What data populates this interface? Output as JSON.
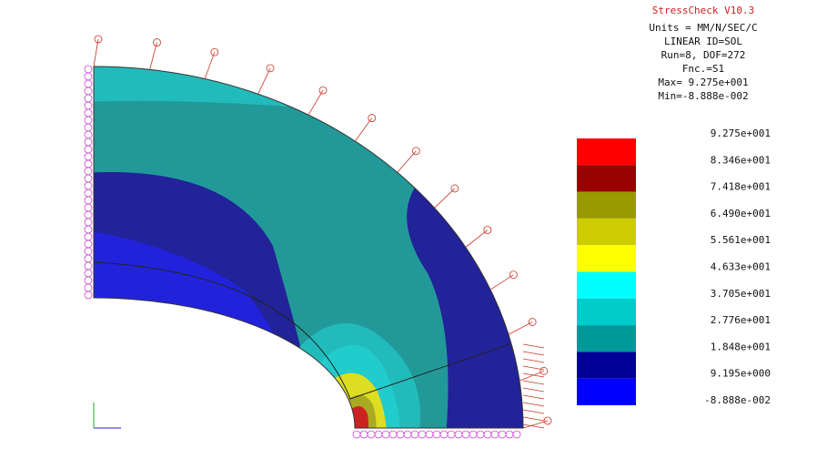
{
  "header": {
    "title": "StressCheck V10.3",
    "lines": [
      "Units = MM/N/SEC/C",
      "LINEAR ID=SOL",
      "Run=8, DOF=272",
      "Fnc.=S1",
      "Max= 9.275e+001",
      "Min=-8.888e-002"
    ]
  },
  "legend": {
    "labels": [
      "9.275e+001",
      "8.346e+001",
      "7.418e+001",
      "6.490e+001",
      "5.561e+001",
      "4.633e+001",
      "3.705e+001",
      "2.776e+001",
      "1.848e+001",
      "9.195e+000",
      "-8.888e-002"
    ],
    "colors": [
      "#ff0000",
      "#990000",
      "#999900",
      "#cccc00",
      "#ffff00",
      "#00ffff",
      "#00cccc",
      "#009999",
      "#000099",
      "#0000ff"
    ]
  }
}
